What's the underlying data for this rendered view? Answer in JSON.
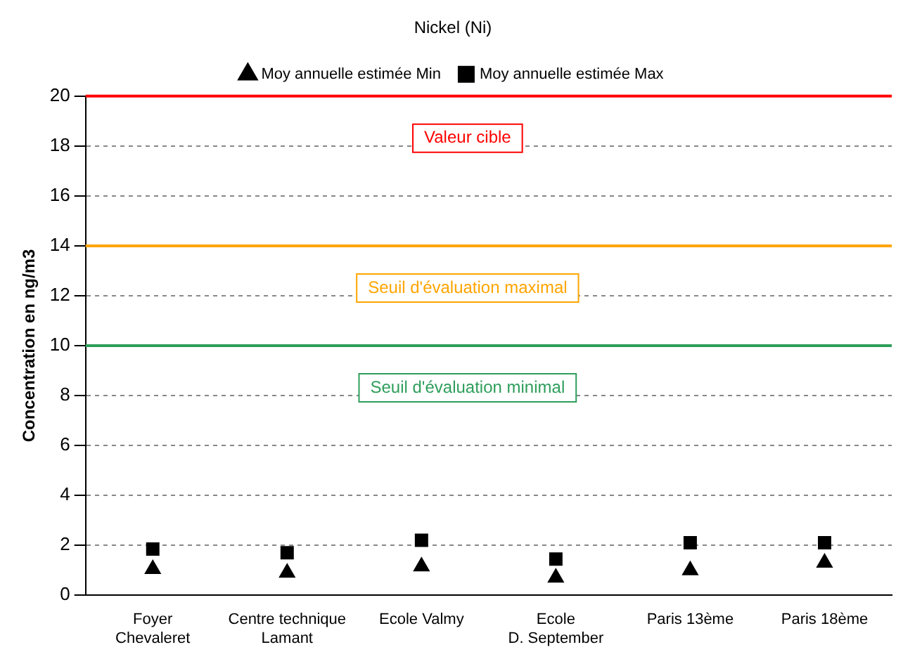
{
  "chart_data": {
    "type": "scatter",
    "title": "Nickel (Ni)",
    "ylabel": "Concentration en ng/m3",
    "categories": [
      "Foyer\nChevaleret",
      "Centre technique\nLamant",
      "Ecole Valmy",
      "Ecole\nD. September",
      "Paris 13ème",
      "Paris 18ème"
    ],
    "series": [
      {
        "name": "Moy annuelle estimée Min",
        "color": "#000000",
        "marker": "triangle",
        "values": [
          1.05,
          0.9,
          1.15,
          0.7,
          1.0,
          1.3
        ]
      },
      {
        "name": "Moy annuelle estimée Max",
        "color": "#000000",
        "marker": "square",
        "values": [
          1.85,
          1.7,
          2.2,
          1.45,
          2.1,
          2.1
        ]
      }
    ],
    "ylim": [
      0,
      20
    ],
    "yticks": [
      0,
      2,
      4,
      6,
      8,
      10,
      12,
      14,
      16,
      18,
      20
    ],
    "grid": "y",
    "legend": "top",
    "ref_lines": [
      {
        "axis": "y",
        "value": 20,
        "label": "Valeur cible",
        "color": "#ff0000"
      },
      {
        "axis": "y",
        "value": 14,
        "label": "Seuil d'évaluation maximal",
        "color": "#ffa500"
      },
      {
        "axis": "y",
        "value": 10,
        "label": "Seuil d'évaluation minimal",
        "color": "#2e9e5b"
      }
    ]
  }
}
